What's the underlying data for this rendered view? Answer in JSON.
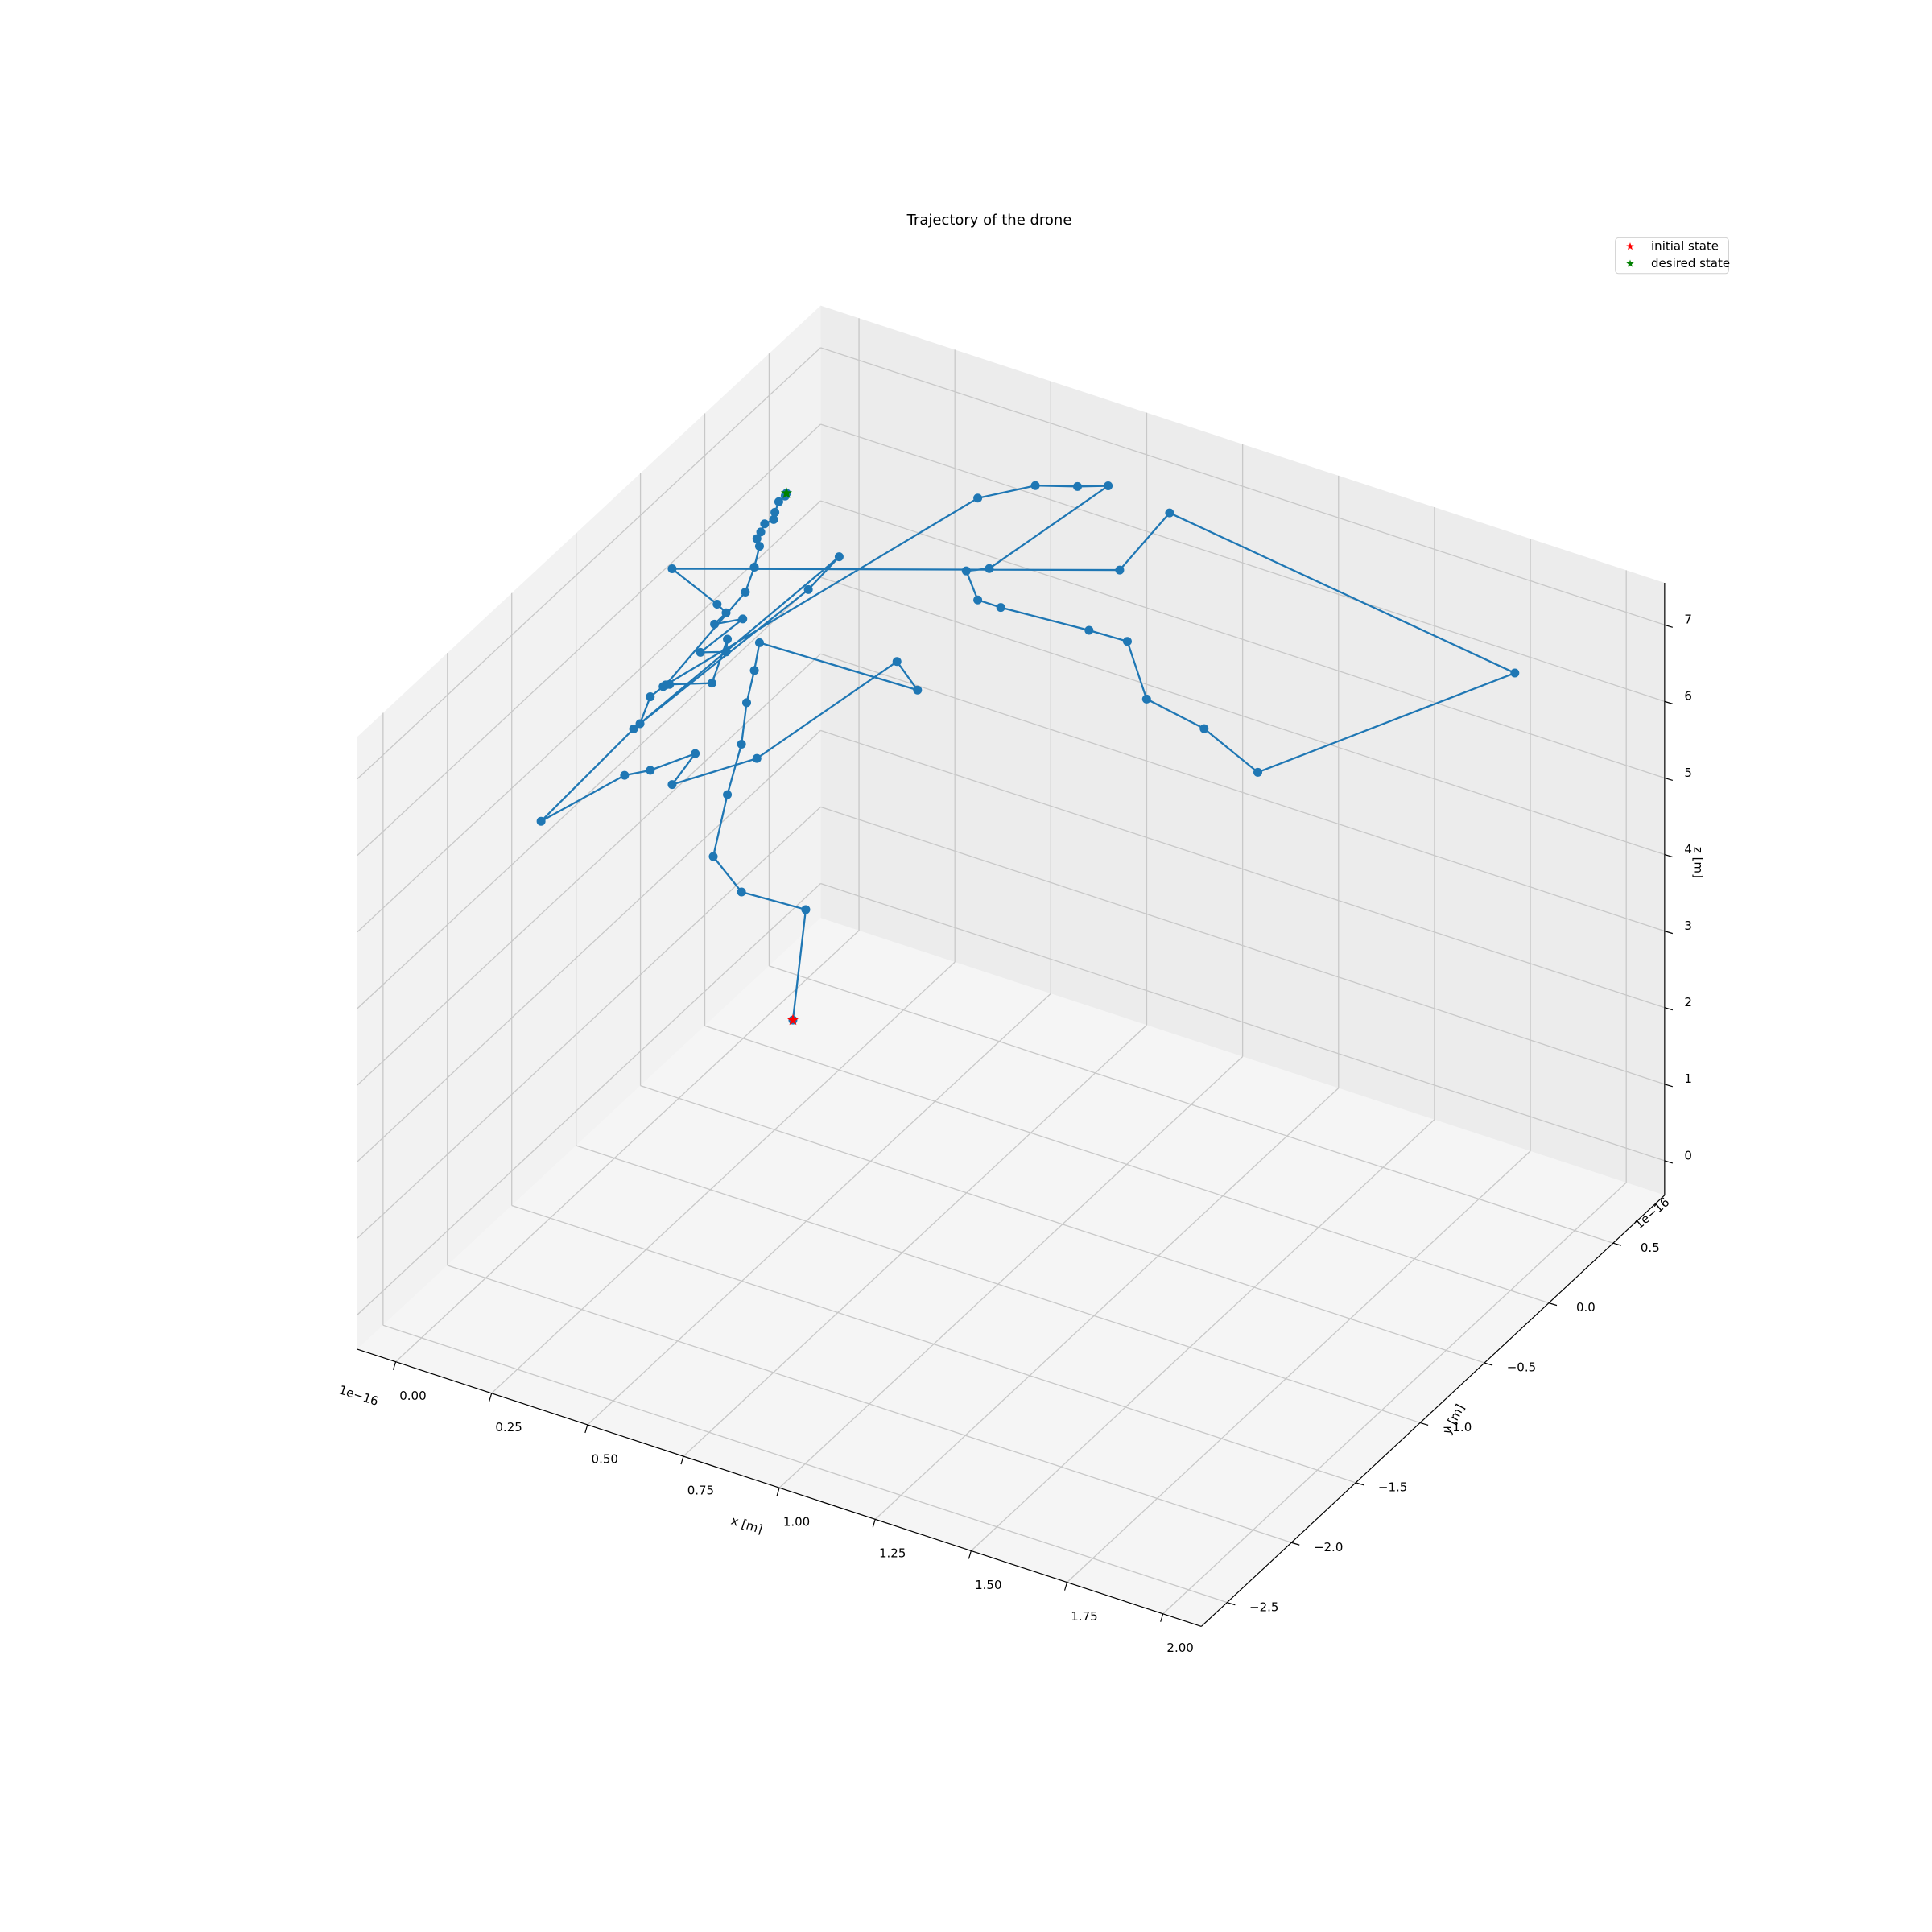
{
  "chart_data": {
    "type": "line3d",
    "title": "Trajectory of the drone",
    "xlabel": "x [m]",
    "ylabel": "y [m]",
    "zlabel": "z [m]",
    "x_offset": "1e−16",
    "y_offset": "1e−16",
    "color": "#1f77b4",
    "x": [
      0.18,
      0.19,
      0.15,
      0.13,
      0.14,
      0.15,
      0.15,
      0.16,
      0.16,
      0.26,
      0.25,
      0.16,
      0.1,
      0.12,
      0.09,
      0.07,
      0.02,
      0.08,
      0.21,
      0.19,
      0.08,
      0.09,
      0.1,
      0.1,
      0.13,
      0.14,
      0.14,
      0.12,
      0.15,
      0.13,
      0.14,
      0.13,
      0.1,
      0.74,
      0.87,
      1.77,
      1.1,
      0.96,
      0.81,
      0.76,
      0.66,
      0.43,
      0.37,
      0.34,
      0.4,
      0.71,
      0.63,
      0.52,
      0.37,
      0.1,
      0.15,
      0.16,
      0.16,
      0.16,
      0.16,
      0.16,
      0.17,
      0.17,
      0.17,
      0.18,
      0.18
    ],
    "y": [
      -0.15,
      -0.08,
      -0.46,
      -0.62,
      -0.54,
      -0.46,
      -0.42,
      -0.39,
      -0.35,
      0.58,
      0.45,
      -0.37,
      -0.85,
      -0.73,
      -0.99,
      -1.13,
      -1.63,
      -1.09,
      0.12,
      -0.06,
      -1.04,
      -0.99,
      -0.92,
      -0.87,
      -0.63,
      -0.54,
      -0.55,
      -0.69,
      -0.45,
      -0.61,
      -0.55,
      -0.59,
      -0.85,
      0.72,
      0.72,
      0.72,
      0.72,
      0.72,
      0.72,
      0.72,
      0.72,
      0.72,
      0.72,
      0.72,
      0.72,
      0.72,
      0.72,
      0.72,
      0.72,
      -0.9,
      -0.43,
      -0.39,
      -0.35,
      -0.37,
      -0.34,
      -0.31,
      -0.27,
      -0.26,
      -0.23,
      -0.21,
      -0.2
    ],
    "z": [
      0.32,
      1.67,
      2.43,
      3.11,
      3.81,
      4.36,
      4.84,
      5.23,
      5.53,
      3.62,
      4.18,
      4.05,
      4.36,
      4.61,
      4.75,
      4.87,
      4.97,
      5.43,
      6.0,
      5.82,
      5.42,
      5.71,
      5.75,
      5.7,
      5.39,
      5.84,
      5.69,
      5.87,
      5.98,
      6.13,
      6.2,
      6.36,
      7.18,
      5.76,
      6.72,
      6.11,
      3.71,
      4.05,
      4.19,
      4.86,
      4.84,
      4.76,
      4.76,
      5.09,
      5.22,
      6.81,
      6.67,
      6.5,
      6.09,
      5.74,
      6.3,
      6.58,
      6.79,
      6.92,
      6.96,
      7.02,
      7.03,
      7.11,
      7.2,
      7.26,
      7.28
    ],
    "markers": [
      {
        "name": "initial state",
        "color": "#ff0000",
        "x": 0.18,
        "y": -0.15,
        "z": 0.32
      },
      {
        "name": "desired state",
        "color": "#008000",
        "x": 0.18,
        "y": -0.2,
        "z": 7.28
      }
    ],
    "legend": "upper right",
    "grid": true,
    "xlim": [
      -0.1,
      2.1
    ],
    "ylim": [
      -2.7,
      0.9
    ],
    "zlim": [
      -0.45,
      7.55
    ],
    "xticks": [
      {
        "value": 0,
        "label": "0.00"
      },
      {
        "value": 0.25,
        "label": "0.25"
      },
      {
        "value": 0.5,
        "label": "0.50"
      },
      {
        "value": 0.75,
        "label": "0.75"
      },
      {
        "value": 1,
        "label": "1.00"
      },
      {
        "value": 1.25,
        "label": "1.25"
      },
      {
        "value": 1.5,
        "label": "1.50"
      },
      {
        "value": 1.75,
        "label": "1.75"
      },
      {
        "value": 2,
        "label": "2.00"
      }
    ],
    "yticks": [
      {
        "value": -2.5,
        "label": "−2.5"
      },
      {
        "value": -2,
        "label": "−2.0"
      },
      {
        "value": -1.5,
        "label": "−1.5"
      },
      {
        "value": -1,
        "label": "−1.0"
      },
      {
        "value": -0.5,
        "label": "−0.5"
      },
      {
        "value": 0,
        "label": "0.0"
      },
      0.5
    ],
    "zticks": [
      0,
      1,
      2,
      3,
      4,
      5,
      6,
      7
    ]
  }
}
